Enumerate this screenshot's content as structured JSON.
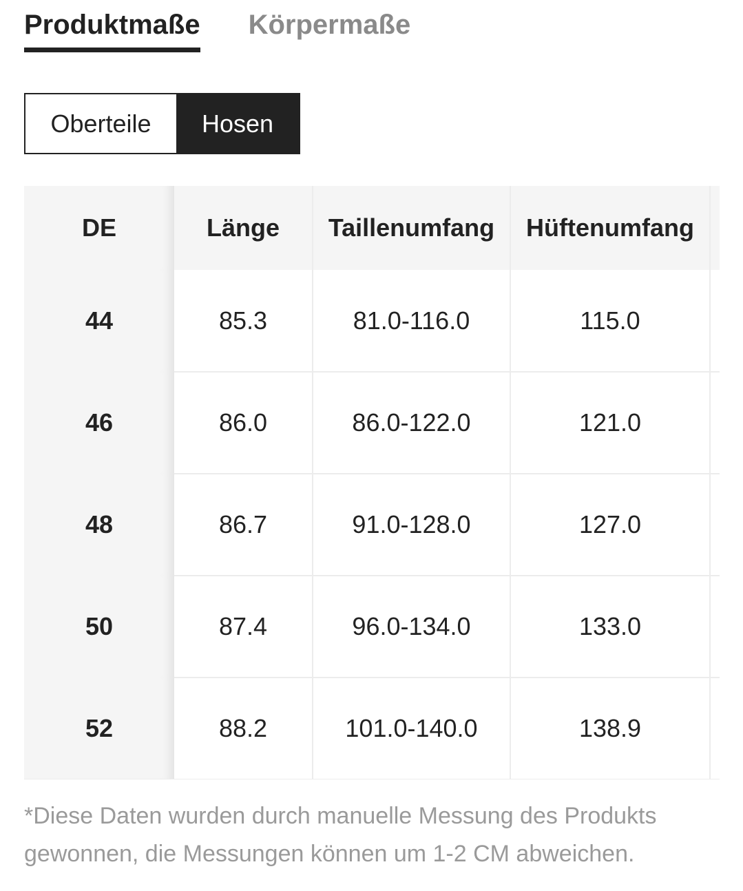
{
  "tabs": {
    "product": "Produktmaße",
    "body": "Körpermaße"
  },
  "toggle": {
    "tops": "Oberteile",
    "pants": "Hosen",
    "selected": "Hosen"
  },
  "table": {
    "headers": [
      "DE",
      "Länge",
      "Taillenumfang",
      "Hüftenumfang"
    ],
    "rows": [
      [
        "44",
        "85.3",
        "81.0-116.0",
        "115.0"
      ],
      [
        "46",
        "86.0",
        "86.0-122.0",
        "121.0"
      ],
      [
        "48",
        "86.7",
        "91.0-128.0",
        "127.0"
      ],
      [
        "50",
        "87.4",
        "96.0-134.0",
        "133.0"
      ],
      [
        "52",
        "88.2",
        "101.0-140.0",
        "138.9"
      ]
    ]
  },
  "note": "*Diese Daten wurden durch manuelle Messung des Produkts gewonnen, die Messungen können um 1-2 CM abweichen.",
  "colors": {
    "text": "#222222",
    "muted": "#8a8a8a",
    "header_bg": "#f5f5f5",
    "border": "#ececec"
  }
}
